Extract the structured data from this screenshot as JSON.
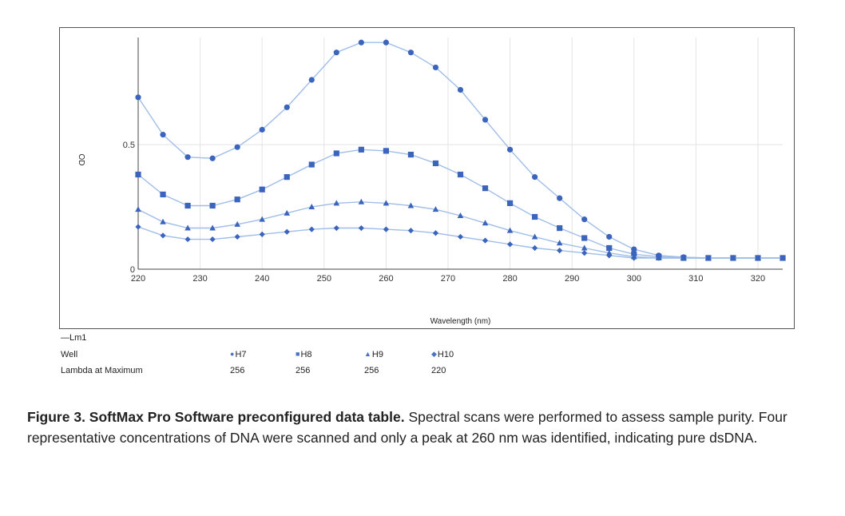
{
  "chart_data": {
    "type": "line",
    "title": "",
    "xlabel": "Wavelength (nm)",
    "ylabel": "OD",
    "xlim": [
      220,
      324
    ],
    "ylim": [
      0,
      0.93
    ],
    "x_ticks": [
      220,
      230,
      240,
      250,
      260,
      270,
      280,
      290,
      300,
      310,
      320
    ],
    "y_ticks": [
      0,
      0.5
    ],
    "y_tick_labels": [
      "0",
      "0.5"
    ],
    "grid": true,
    "line_color": "#9fbde8",
    "marker_color": "#3b64bd",
    "x": [
      220,
      224,
      228,
      232,
      236,
      240,
      244,
      248,
      252,
      256,
      260,
      264,
      268,
      272,
      276,
      280,
      284,
      288,
      292,
      296,
      300,
      304,
      308,
      312,
      316,
      320,
      324
    ],
    "series": [
      {
        "name": "H7",
        "marker": "circle",
        "values": [
          0.69,
          0.54,
          0.45,
          0.445,
          0.49,
          0.56,
          0.65,
          0.76,
          0.87,
          0.91,
          0.91,
          0.87,
          0.81,
          0.72,
          0.6,
          0.48,
          0.37,
          0.285,
          0.2,
          0.13,
          0.08,
          0.055,
          0.048,
          0.045,
          0.045,
          0.045,
          0.045
        ]
      },
      {
        "name": "H8",
        "marker": "square",
        "values": [
          0.38,
          0.3,
          0.255,
          0.255,
          0.28,
          0.32,
          0.37,
          0.42,
          0.465,
          0.48,
          0.475,
          0.46,
          0.425,
          0.38,
          0.325,
          0.265,
          0.21,
          0.165,
          0.125,
          0.085,
          0.06,
          0.05,
          0.045,
          0.045,
          0.045,
          0.045,
          0.045
        ]
      },
      {
        "name": "H9",
        "marker": "triangle",
        "values": [
          0.24,
          0.19,
          0.165,
          0.165,
          0.18,
          0.2,
          0.225,
          0.25,
          0.265,
          0.27,
          0.265,
          0.255,
          0.24,
          0.215,
          0.185,
          0.155,
          0.13,
          0.105,
          0.085,
          0.065,
          0.05,
          0.045,
          0.045,
          0.045,
          0.045,
          0.045,
          0.045
        ]
      },
      {
        "name": "H10",
        "marker": "diamond",
        "values": [
          0.17,
          0.135,
          0.12,
          0.12,
          0.13,
          0.14,
          0.15,
          0.16,
          0.165,
          0.165,
          0.16,
          0.155,
          0.145,
          0.13,
          0.115,
          0.1,
          0.085,
          0.075,
          0.065,
          0.055,
          0.045,
          0.045,
          0.045,
          0.045,
          0.045,
          0.045,
          0.045
        ]
      }
    ]
  },
  "legend": {
    "heading": "—Lm1",
    "well_label": "Well",
    "lambda_label": "Lambda at Maximum",
    "wells": [
      {
        "symbol": "●",
        "name": "H7",
        "lambda": "256"
      },
      {
        "symbol": "■",
        "name": "H8",
        "lambda": "256"
      },
      {
        "symbol": "▲",
        "name": "H9",
        "lambda": "256"
      },
      {
        "symbol": "◆",
        "name": "H10",
        "lambda": "220"
      }
    ]
  },
  "caption": {
    "bold": "Figure 3. SoftMax Pro Software preconfigured data table.",
    "text": " Spectral scans were performed to assess sample purity. Four representative concentrations of DNA were scanned and only a peak at 260 nm was identified, indicating pure dsDNA."
  }
}
